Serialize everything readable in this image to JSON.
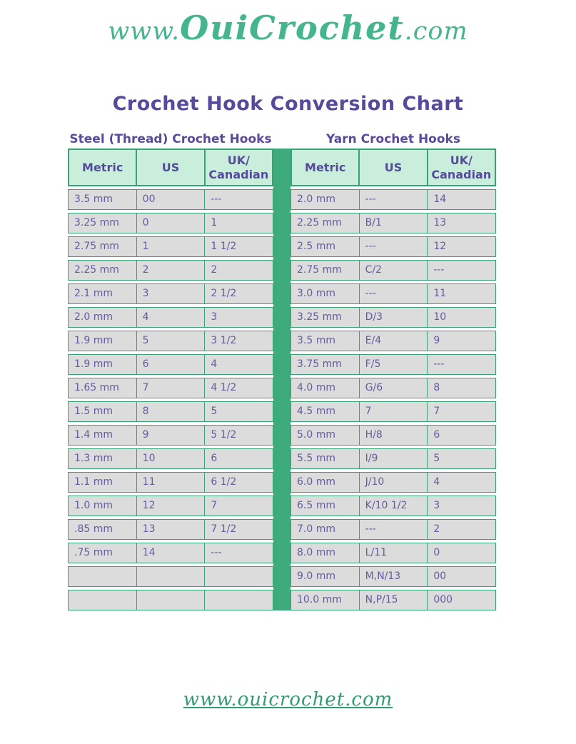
{
  "logo": {
    "prefix": "www.",
    "brand": "OuiCrochet",
    "suffix": ".com"
  },
  "title": "Crochet Hook Conversion Chart",
  "colors": {
    "brand_green": "#45b58e",
    "divider_green": "#3dab7c",
    "border_green": "#36a276",
    "header_cell_bg": "#c9efdc",
    "row_gray": "#dcdcdc",
    "heading_purple": "#564a9c",
    "cell_text_purple": "#675a9e",
    "footer_link_green": "#2f9c71"
  },
  "tables": [
    {
      "heading": "Steel (Thread) Crochet Hooks",
      "columns": [
        "Metric",
        "US",
        "UK/\nCanadian"
      ],
      "rows": [
        [
          "3.5 mm",
          "00",
          "---"
        ],
        [
          "3.25 mm",
          "0",
          "1"
        ],
        [
          "2.75 mm",
          "1",
          "1 1/2"
        ],
        [
          "2.25 mm",
          "2",
          "2"
        ],
        [
          "2.1 mm",
          "3",
          "2 1/2"
        ],
        [
          "2.0 mm",
          "4",
          "3"
        ],
        [
          "1.9 mm",
          "5",
          "3 1/2"
        ],
        [
          "1.9 mm",
          "6",
          "4"
        ],
        [
          "1.65 mm",
          "7",
          "4 1/2"
        ],
        [
          "1.5 mm",
          "8",
          "5"
        ],
        [
          "1.4 mm",
          "9",
          "5 1/2"
        ],
        [
          "1.3 mm",
          "10",
          "6"
        ],
        [
          "1.1 mm",
          "11",
          "6 1/2"
        ],
        [
          "1.0 mm",
          "12",
          "7"
        ],
        [
          ".85 mm",
          "13",
          "7 1/2"
        ],
        [
          ".75 mm",
          "14",
          "---"
        ],
        [
          "",
          "",
          ""
        ],
        [
          "",
          "",
          ""
        ]
      ]
    },
    {
      "heading": "Yarn Crochet Hooks",
      "columns": [
        "Metric",
        "US",
        "UK/\nCanadian"
      ],
      "rows": [
        [
          "2.0 mm",
          "---",
          "14"
        ],
        [
          "2.25 mm",
          "B/1",
          "13"
        ],
        [
          "2.5 mm",
          "---",
          "12"
        ],
        [
          "2.75 mm",
          "C/2",
          "---"
        ],
        [
          "3.0 mm",
          "---",
          "11"
        ],
        [
          "3.25 mm",
          "D/3",
          "10"
        ],
        [
          "3.5 mm",
          "E/4",
          "9"
        ],
        [
          "3.75 mm",
          "F/5",
          "---"
        ],
        [
          "4.0 mm",
          "G/6",
          "8"
        ],
        [
          "4.5 mm",
          "7",
          "7"
        ],
        [
          "5.0 mm",
          "H/8",
          "6"
        ],
        [
          "5.5 mm",
          "I/9",
          "5"
        ],
        [
          "6.0 mm",
          "J/10",
          "4"
        ],
        [
          "6.5 mm",
          "K/10 1/2",
          "3"
        ],
        [
          "7.0 mm",
          "---",
          "2"
        ],
        [
          "8.0 mm",
          "L/11",
          "0"
        ],
        [
          "9.0 mm",
          "M,N/13",
          "00"
        ],
        [
          "10.0 mm",
          "N,P/15",
          "000"
        ]
      ]
    }
  ],
  "footer": {
    "link_text": "www.ouicrochet.com"
  }
}
